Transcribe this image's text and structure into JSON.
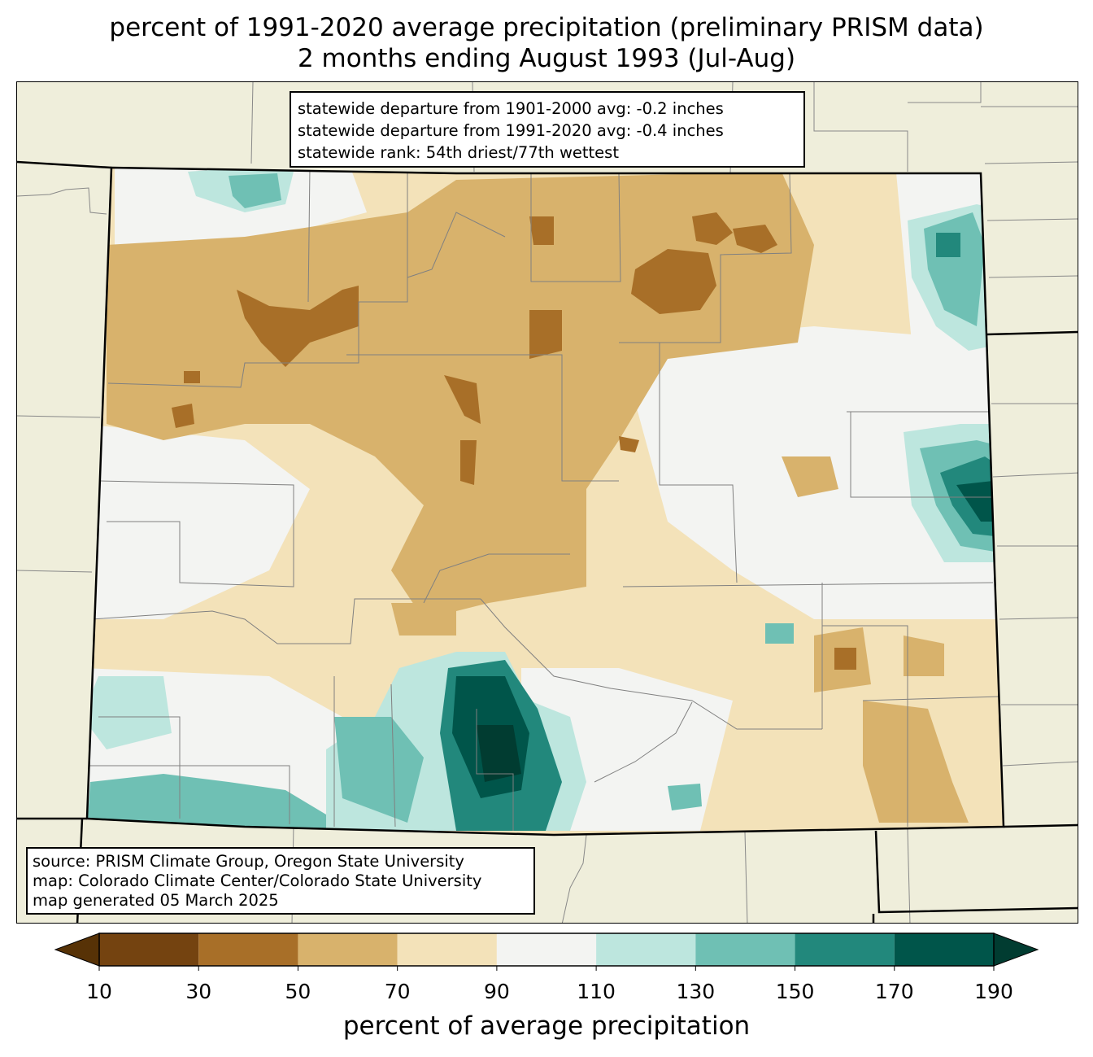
{
  "title_line1": "percent of 1991-2020 average precipitation (preliminary PRISM data)",
  "title_line2": "2 months ending August 1993 (Jul-Aug)",
  "stats": {
    "departure_1901_2000": "statewide departure from 1901-2000 avg: -0.2 inches",
    "departure_1991_2020": "statewide departure from 1991-2020 avg: -0.4 inches",
    "rank": "statewide rank: 54th driest/77th wettest"
  },
  "source": {
    "line1": "source: PRISM Climate Group, Oregon State University",
    "line2": "map: Colorado Climate Center/Colorado State University",
    "line3": "map generated 05 March 2025"
  },
  "colorbar": {
    "label": "percent of average precipitation",
    "ticks": [
      "10",
      "30",
      "50",
      "70",
      "90",
      "110",
      "130",
      "150",
      "170",
      "190"
    ],
    "bins": [
      {
        "range": "10-30",
        "color": "#744310"
      },
      {
        "range": "30-50",
        "color": "#a86f28"
      },
      {
        "range": "50-70",
        "color": "#d8b26c"
      },
      {
        "range": "70-90",
        "color": "#f3e2b9"
      },
      {
        "range": "90-110",
        "color": "#f3f4f2"
      },
      {
        "range": "110-130",
        "color": "#bde6de"
      },
      {
        "range": "130-150",
        "color": "#6fc0b4"
      },
      {
        "range": "150-170",
        "color": "#22887c"
      },
      {
        "range": "170-190",
        "color": "#00554a"
      }
    ],
    "under_color": "#573206",
    "over_color": "#013c31"
  },
  "colors": {
    "background_land": "#efeedb",
    "county_line": "#808080",
    "state_line": "#000000"
  }
}
